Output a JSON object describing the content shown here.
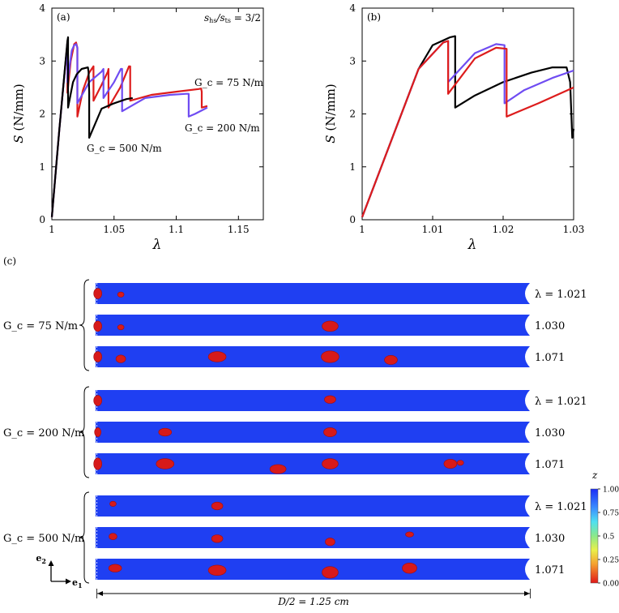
{
  "chart_data": [
    {
      "type": "line",
      "panel_label": "(a)",
      "annotation": "s_hs/s_ts = 3/2",
      "ylabel_sym": "S",
      "ylabel_unit": "(N/mm)",
      "xlabel": "λ",
      "xlim": [
        1.0,
        1.17
      ],
      "ylim": [
        0,
        4
      ],
      "xticks": [
        "1",
        "1.05",
        "1.1",
        "1.15"
      ],
      "xtick_values": [
        1.0,
        1.05,
        1.1,
        1.15
      ],
      "yticks": [
        "0",
        "1",
        "2",
        "3",
        "4"
      ],
      "ytick_values": [
        0,
        1,
        2,
        3,
        4
      ],
      "curve_labels": {
        "gc75": "G_c = 75 N/m",
        "gc200": "G_c = 200 N/m",
        "gc500": "G_c = 500 N/m"
      },
      "series": [
        {
          "name": "G_c = 75 N/m",
          "color": "#dd1c1c",
          "x": [
            1.0,
            1.006,
            1.0125,
            1.0125,
            1.0152,
            1.018,
            1.0195,
            1.0205,
            1.0205,
            1.025,
            1.03,
            1.0335,
            1.0335,
            1.04,
            1.045,
            1.0455,
            1.0455,
            1.055,
            1.062,
            1.063,
            1.063,
            1.08,
            1.1,
            1.118,
            1.12,
            1.1205,
            1.1205,
            1.125
          ],
          "y": [
            0.05,
            1.7,
            3.35,
            2.4,
            3.0,
            3.32,
            3.35,
            3.25,
            1.95,
            2.45,
            2.78,
            2.9,
            2.25,
            2.55,
            2.8,
            2.85,
            2.12,
            2.5,
            2.9,
            2.9,
            2.25,
            2.36,
            2.42,
            2.47,
            2.48,
            2.42,
            2.12,
            2.15
          ]
        },
        {
          "name": "G_c = 200 N/m",
          "color": "#6f4cf2",
          "x": [
            1.0,
            1.006,
            1.0125,
            1.0125,
            1.016,
            1.018,
            1.0195,
            1.0205,
            1.0205,
            1.03,
            1.04,
            1.0415,
            1.0415,
            1.05,
            1.0555,
            1.0565,
            1.0565,
            1.075,
            1.095,
            1.108,
            1.11,
            1.11,
            1.115,
            1.125
          ],
          "y": [
            0.05,
            1.7,
            3.35,
            2.6,
            3.2,
            3.3,
            3.32,
            3.25,
            2.2,
            2.6,
            2.8,
            2.85,
            2.3,
            2.6,
            2.85,
            2.85,
            2.05,
            2.3,
            2.36,
            2.38,
            2.38,
            1.95,
            2.0,
            2.12
          ]
        },
        {
          "name": "G_c = 500 N/m",
          "color": "#000000",
          "x": [
            1.0,
            1.006,
            1.0125,
            1.013,
            1.013,
            1.017,
            1.02,
            1.024,
            1.029,
            1.0295,
            1.03,
            1.03,
            1.04,
            1.05,
            1.06,
            1.065
          ],
          "y": [
            0.05,
            1.7,
            3.38,
            3.45,
            2.12,
            2.6,
            2.75,
            2.85,
            2.88,
            2.8,
            2.4,
            1.55,
            2.1,
            2.2,
            2.28,
            2.3
          ]
        }
      ]
    },
    {
      "type": "line",
      "panel_label": "(b)",
      "ylabel_sym": "S",
      "ylabel_unit": "(N/mm)",
      "xlabel": "λ",
      "xlim": [
        1.0,
        1.03
      ],
      "ylim": [
        0,
        4
      ],
      "xticks": [
        "1",
        "1.01",
        "1.02",
        "1.03"
      ],
      "xtick_values": [
        1.0,
        1.01,
        1.02,
        1.03
      ],
      "yticks": [
        "0",
        "1",
        "2",
        "3",
        "4"
      ],
      "ytick_values": [
        0,
        1,
        2,
        3,
        4
      ],
      "series": [
        {
          "name": "G_c = 500 N/m",
          "color": "#000000",
          "x": [
            1.0,
            1.004,
            1.008,
            1.01,
            1.0125,
            1.0132,
            1.0132,
            1.016,
            1.02,
            1.024,
            1.027,
            1.029,
            1.0295,
            1.0298,
            1.03
          ],
          "y": [
            0.05,
            1.45,
            2.85,
            3.3,
            3.45,
            3.47,
            2.12,
            2.35,
            2.6,
            2.78,
            2.88,
            2.88,
            2.6,
            1.55,
            1.72
          ]
        },
        {
          "name": "G_c = 200 N/m",
          "color": "#6f4cf2",
          "x": [
            1.0,
            1.004,
            1.008,
            1.0115,
            1.0122,
            1.0122,
            1.016,
            1.019,
            1.0202,
            1.0202,
            1.023,
            1.027,
            1.03
          ],
          "y": [
            0.05,
            1.45,
            2.85,
            3.35,
            3.38,
            2.6,
            3.15,
            3.32,
            3.3,
            2.2,
            2.45,
            2.68,
            2.82
          ]
        },
        {
          "name": "G_c = 75 N/m",
          "color": "#dd1c1c",
          "x": [
            1.0,
            1.004,
            1.008,
            1.0115,
            1.0122,
            1.0122,
            1.016,
            1.019,
            1.0205,
            1.0205,
            1.025,
            1.03
          ],
          "y": [
            0.05,
            1.45,
            2.85,
            3.35,
            3.38,
            2.38,
            3.05,
            3.25,
            3.23,
            1.95,
            2.2,
            2.5
          ]
        }
      ]
    }
  ],
  "panel_c": {
    "panel_label": "(c)",
    "groups": [
      {
        "label": "G_c = 75 N/m",
        "rows": [
          {
            "lambda": "λ = 1.021",
            "dots": [
              [
                0.005,
                0.5,
                5,
                8
              ],
              [
                0.058,
                0.55,
                4,
                4
              ]
            ]
          },
          {
            "lambda": "1.030",
            "dots": [
              [
                0.005,
                0.55,
                5,
                8
              ],
              [
                0.058,
                0.6,
                4,
                4
              ],
              [
                0.54,
                0.55,
                10,
                8
              ]
            ]
          },
          {
            "lambda": "1.071",
            "dots": [
              [
                0.005,
                0.5,
                5,
                8
              ],
              [
                0.058,
                0.6,
                6,
                6
              ],
              [
                0.28,
                0.5,
                11,
                8
              ],
              [
                0.54,
                0.5,
                11,
                9
              ],
              [
                0.68,
                0.65,
                8,
                7
              ]
            ]
          }
        ]
      },
      {
        "label": "G_c = 200 N/m",
        "rows": [
          {
            "lambda": "λ = 1.021",
            "dots": [
              [
                0.005,
                0.5,
                5,
                8
              ],
              [
                0.54,
                0.45,
                7,
                6
              ]
            ]
          },
          {
            "lambda": "1.030",
            "dots": [
              [
                0.005,
                0.5,
                4,
                7
              ],
              [
                0.16,
                0.5,
                8,
                6
              ],
              [
                0.54,
                0.5,
                8,
                7
              ]
            ]
          },
          {
            "lambda": "1.071",
            "dots": [
              [
                0.005,
                0.5,
                5,
                9
              ],
              [
                0.16,
                0.5,
                11,
                8
              ],
              [
                0.42,
                0.75,
                10,
                7
              ],
              [
                0.54,
                0.5,
                10,
                8
              ],
              [
                0.817,
                0.5,
                8,
                7
              ],
              [
                0.84,
                0.45,
                4,
                4
              ]
            ]
          }
        ]
      },
      {
        "label": "G_c = 500 N/m",
        "rows": [
          {
            "lambda": "λ = 1.021",
            "dots": [
              [
                0.04,
                0.4,
                4,
                4
              ],
              [
                0.28,
                0.5,
                7,
                6
              ]
            ]
          },
          {
            "lambda": "1.030",
            "dots": [
              [
                0.04,
                0.45,
                5,
                5
              ],
              [
                0.28,
                0.55,
                7,
                6
              ],
              [
                0.54,
                0.7,
                6,
                6
              ],
              [
                0.723,
                0.35,
                5,
                4
              ]
            ]
          },
          {
            "lambda": "1.071",
            "dots": [
              [
                0.045,
                0.45,
                8,
                6
              ],
              [
                0.28,
                0.55,
                11,
                8
              ],
              [
                0.54,
                0.65,
                10,
                9
              ],
              [
                0.723,
                0.45,
                9,
                8
              ]
            ]
          }
        ]
      }
    ],
    "colorbar": {
      "title": "z",
      "ticks": [
        "1.00",
        "0.75",
        "0.5",
        "0.25",
        "0.00"
      ],
      "tick_values": [
        1.0,
        0.75,
        0.5,
        0.25,
        0.0
      ]
    },
    "axes_labels": {
      "e1": "e",
      "e1_sub": "1",
      "e2": "e",
      "e2_sub": "2"
    },
    "dimension_label": "D/2 = 1.25 cm",
    "colors": {
      "strip": "#1f3ff2",
      "inclusion": "#d71a1a",
      "inclusion_edge": "#a20d0d"
    }
  }
}
